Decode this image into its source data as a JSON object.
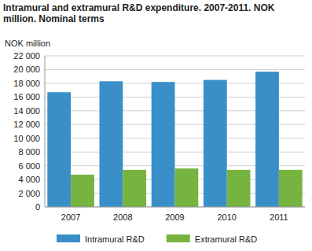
{
  "chart_data": {
    "type": "bar",
    "title": "Intramural and extramural R&D expenditure. 2007-2011. NOK million. Nominal terms",
    "y_label": "NOK million",
    "categories": [
      "2007",
      "2008",
      "2009",
      "2010",
      "2011"
    ],
    "series": [
      {
        "name": "Intramural R&D",
        "color": "#3a8fc9",
        "values": [
          16700,
          18300,
          18200,
          18500,
          19700
        ]
      },
      {
        "name": "Extramural R&D",
        "color": "#76b33f",
        "values": [
          4700,
          5400,
          5600,
          5400,
          5400
        ]
      }
    ],
    "ylim": [
      0,
      22000
    ],
    "yticks": [
      0,
      {
        "value": 2000,
        "label": "2 000"
      },
      {
        "value": 4000,
        "label": "4 000"
      },
      {
        "value": 6000,
        "label": "6 000"
      },
      {
        "value": 8000,
        "label": "8 000"
      },
      {
        "value": 10000,
        "label": "10 000"
      },
      {
        "value": 12000,
        "label": "12 000"
      },
      {
        "value": 14000,
        "label": "14 000"
      },
      {
        "value": 16000,
        "label": "16 000"
      },
      {
        "value": 18000,
        "label": "18 000"
      },
      {
        "value": 20000,
        "label": "20 000"
      },
      {
        "value": 22000,
        "label": "22 000"
      }
    ],
    "grid": true,
    "legend": "bottom"
  }
}
